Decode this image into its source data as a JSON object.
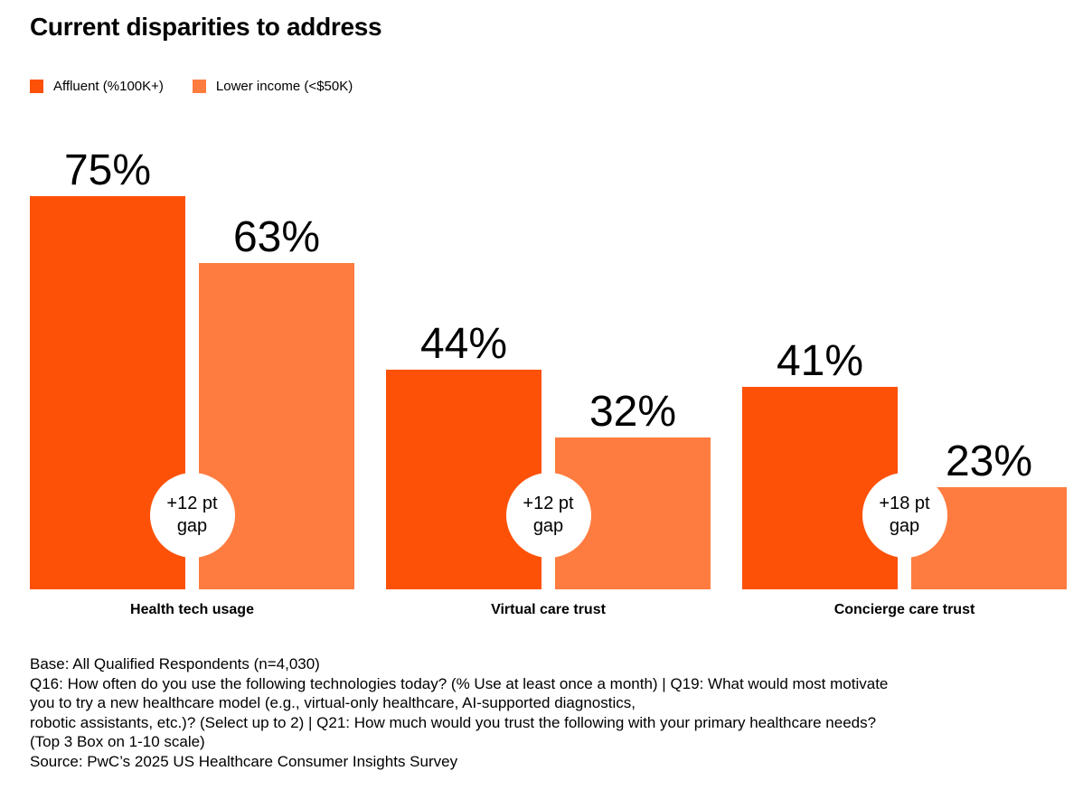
{
  "chart_data": {
    "type": "bar",
    "title": "Current disparities to address",
    "categories": [
      "Health tech usage",
      "Virtual care trust",
      "Concierge care trust"
    ],
    "series": [
      {
        "name": "Affluent (%100K+)",
        "color": "#FD5108",
        "values": [
          75,
          44,
          41
        ],
        "labels": [
          "75%",
          "44%",
          "41%"
        ]
      },
      {
        "name": "Lower income (<$50K)",
        "color": "#FE7C3F",
        "values": [
          63,
          32,
          23
        ],
        "labels": [
          "63%",
          "32%",
          "23%"
        ]
      }
    ],
    "gaps": [
      {
        "line1": "+12 pt",
        "line2": "gap"
      },
      {
        "line1": "+12 pt",
        "line2": "gap"
      },
      {
        "line1": "+18 pt",
        "line2": "gap"
      }
    ],
    "xlabel": "",
    "ylabel": "",
    "ylim": [
      0,
      100
    ],
    "grid": false,
    "legend": "top-left"
  },
  "notes": [
    "Base: All Qualified Respondents (n=4,030)",
    "Q16: How often do you use the following technologies today? (% Use at least once a month) | Q19: What would most motivate",
    "you to try a new healthcare model (e.g., virtual-only healthcare, AI-supported diagnostics,",
    "robotic assistants, etc.)? (Select up to 2) | Q21: How much would you trust the following with your primary healthcare needs?",
    "(Top 3 Box on 1-10 scale)",
    "Source: PwC’s 2025 US Healthcare Consumer Insights Survey"
  ]
}
